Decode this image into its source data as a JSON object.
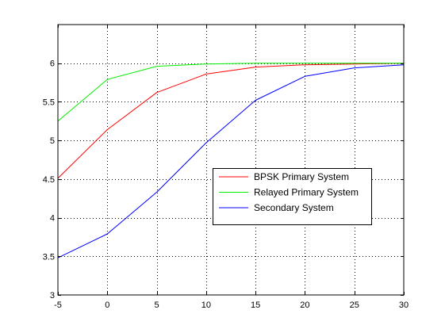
{
  "chart_data": {
    "type": "line",
    "title": "",
    "xlabel": "",
    "ylabel": "",
    "xlim": [
      -5,
      30
    ],
    "ylim": [
      3,
      6.5
    ],
    "xticks": [
      -5,
      0,
      5,
      10,
      15,
      20,
      25,
      30
    ],
    "yticks": [
      3,
      3.5,
      4,
      4.5,
      5,
      5.5,
      6
    ],
    "xtick_labels": [
      "-5",
      "0",
      "5",
      "10",
      "15",
      "20",
      "25",
      "30"
    ],
    "ytick_labels": [
      "3",
      "3.5",
      "4",
      "4.5",
      "5",
      "5.5",
      "6"
    ],
    "grid": true,
    "grid_style": "dotted",
    "legend_position": "center-right",
    "x": [
      -5,
      0,
      5,
      10,
      15,
      20,
      25,
      30
    ],
    "series": [
      {
        "name": "BPSK Primary System",
        "color": "#ff0000",
        "values": [
          4.51,
          5.14,
          5.62,
          5.86,
          5.95,
          5.98,
          5.99,
          6.0
        ]
      },
      {
        "name": "Relayed Primary System",
        "color": "#00ee00",
        "values": [
          5.25,
          5.79,
          5.96,
          5.99,
          6.0,
          6.0,
          6.0,
          6.0
        ]
      },
      {
        "name": "Secondary System",
        "color": "#0000ff",
        "values": [
          3.48,
          3.79,
          4.33,
          4.97,
          5.52,
          5.83,
          5.94,
          5.98
        ]
      }
    ]
  }
}
